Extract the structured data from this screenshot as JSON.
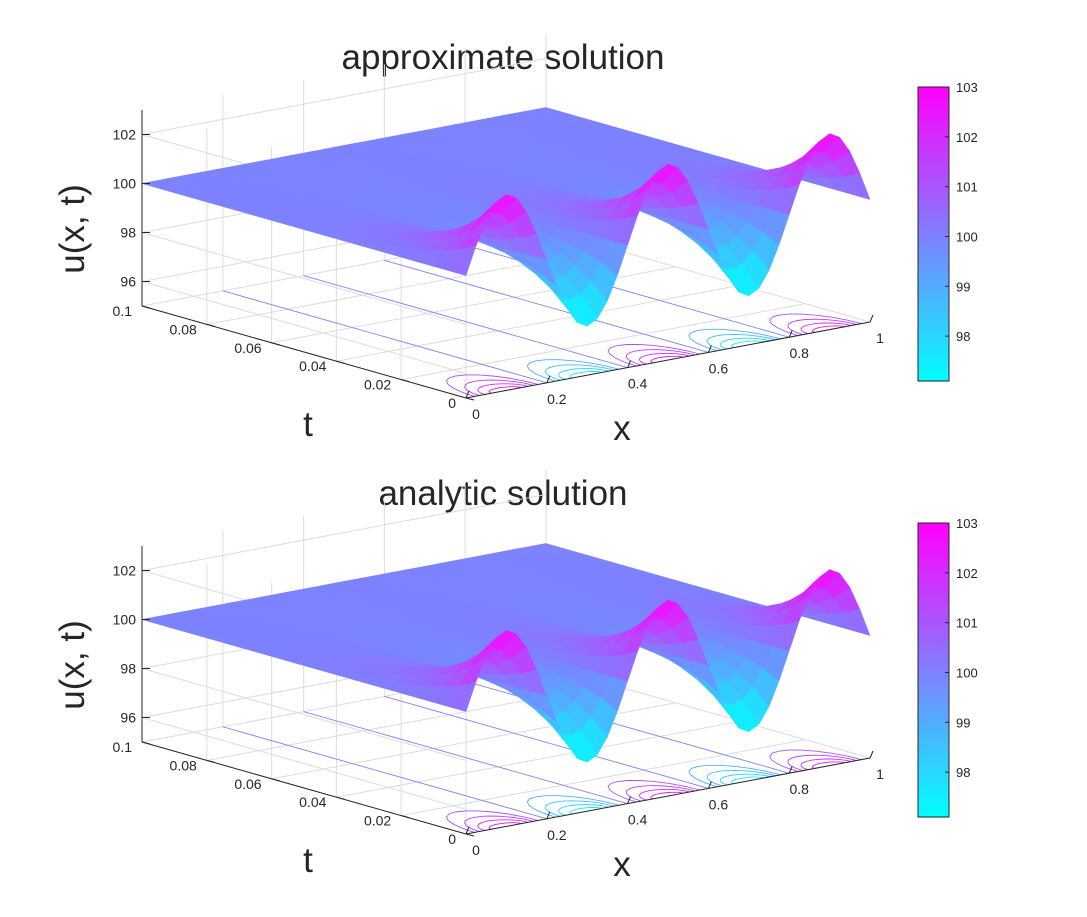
{
  "chart_data": [
    {
      "type": "surface",
      "title": "approximate solution",
      "xlabel": "x",
      "ylabel": "t",
      "zlabel": "u(x, t)",
      "x_range": [
        0,
        1
      ],
      "t_range": [
        0,
        0.1
      ],
      "z_range": [
        95,
        103
      ],
      "x_ticks": [
        "0",
        "0.2",
        "0.4",
        "0.6",
        "0.8",
        "1"
      ],
      "t_ticks": [
        "0",
        "0.02",
        "0.04",
        "0.06",
        "0.08",
        "0.1"
      ],
      "z_ticks": [
        "96",
        "98",
        "100",
        "102"
      ],
      "colorbar": {
        "range": [
          97.1,
          103
        ],
        "ticks": [
          "98",
          "99",
          "100",
          "101",
          "102",
          "103"
        ],
        "colormap": "cool"
      },
      "initial_profile": "u(x,0) = 100 + 3 sin(5πx)",
      "profile_at_t0": {
        "x": [
          0,
          0.1,
          0.2,
          0.3,
          0.4,
          0.5,
          0.6,
          0.7,
          0.8,
          0.9,
          1.0
        ],
        "u": [
          100,
          103,
          100,
          97,
          100,
          103,
          100,
          97,
          100,
          103,
          100
        ]
      },
      "steady_value": 100,
      "grid": true,
      "contour_projection": true
    },
    {
      "type": "surface",
      "title": "analytic solution",
      "xlabel": "x",
      "ylabel": "t",
      "zlabel": "u(x, t)",
      "x_range": [
        0,
        1
      ],
      "t_range": [
        0,
        0.1
      ],
      "z_range": [
        95,
        103
      ],
      "x_ticks": [
        "0",
        "0.2",
        "0.4",
        "0.6",
        "0.8",
        "1"
      ],
      "t_ticks": [
        "0",
        "0.02",
        "0.04",
        "0.06",
        "0.08",
        "0.1"
      ],
      "z_ticks": [
        "96",
        "98",
        "100",
        "102"
      ],
      "colorbar": {
        "range": [
          97.1,
          103
        ],
        "ticks": [
          "98",
          "99",
          "100",
          "101",
          "102",
          "103"
        ],
        "colormap": "cool"
      },
      "initial_profile": "u(x,0) = 100 + 3 sin(5πx)",
      "profile_at_t0": {
        "x": [
          0,
          0.1,
          0.2,
          0.3,
          0.4,
          0.5,
          0.6,
          0.7,
          0.8,
          0.9,
          1.0
        ],
        "u": [
          100,
          103,
          100,
          97,
          100,
          103,
          100,
          97,
          100,
          103,
          100
        ]
      },
      "steady_value": 100,
      "grid": true,
      "contour_projection": true
    }
  ]
}
